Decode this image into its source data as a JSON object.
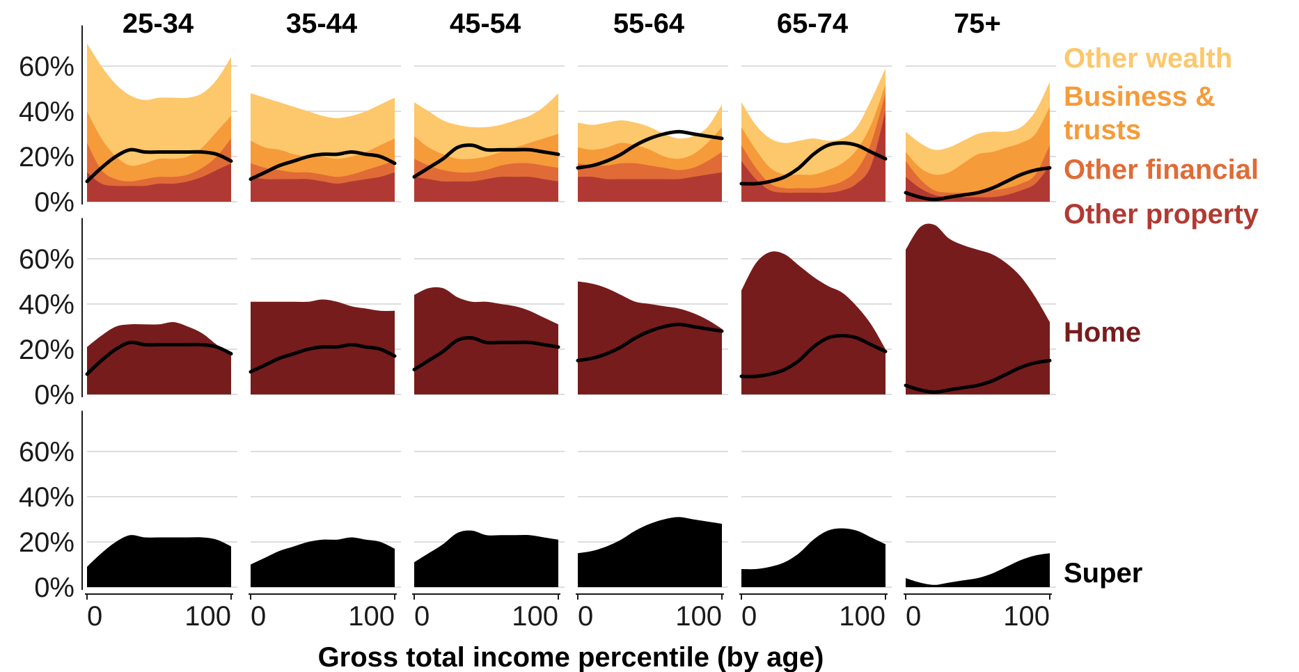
{
  "chart_data": {
    "type": "area",
    "xlabel": "Gross total income percentile (by age)",
    "x_ticks": [
      "0",
      "100"
    ],
    "x_range": [
      0,
      100
    ],
    "y_ticks": [
      "0%",
      "20%",
      "40%",
      "60%"
    ],
    "y_range": [
      0,
      0.78
    ],
    "x": [
      0,
      10,
      20,
      30,
      40,
      50,
      60,
      70,
      80,
      90,
      100
    ],
    "age_groups": [
      "25-34",
      "35-44",
      "45-54",
      "55-64",
      "65-74",
      "75+"
    ],
    "rows": [
      {
        "label_lines": [
          "Other wealth",
          "Business &",
          "trusts",
          "Other financial",
          "Other property"
        ],
        "series_names": [
          "Other property",
          "Other financial",
          "Business & trusts",
          "Other wealth"
        ],
        "colors": [
          "#b03a33",
          "#e06b36",
          "#f59b3a",
          "#fdc76b"
        ]
      },
      {
        "label_lines": [
          "Home"
        ],
        "colors": [
          "#771c1c"
        ]
      },
      {
        "label_lines": [
          "Super"
        ],
        "colors": [
          "#000000"
        ]
      }
    ],
    "super_share": {
      "25-34": [
        0.09,
        0.15,
        0.2,
        0.23,
        0.22,
        0.22,
        0.22,
        0.22,
        0.22,
        0.21,
        0.18
      ],
      "35-44": [
        0.1,
        0.13,
        0.16,
        0.18,
        0.2,
        0.21,
        0.21,
        0.22,
        0.21,
        0.2,
        0.17
      ],
      "45-54": [
        0.11,
        0.15,
        0.19,
        0.24,
        0.25,
        0.23,
        0.23,
        0.23,
        0.23,
        0.22,
        0.21
      ],
      "55-64": [
        0.15,
        0.16,
        0.18,
        0.21,
        0.25,
        0.28,
        0.3,
        0.31,
        0.3,
        0.29,
        0.28
      ],
      "65-74": [
        0.08,
        0.08,
        0.09,
        0.11,
        0.15,
        0.21,
        0.25,
        0.26,
        0.25,
        0.22,
        0.19
      ],
      "75+": [
        0.04,
        0.02,
        0.01,
        0.02,
        0.03,
        0.04,
        0.06,
        0.09,
        0.12,
        0.14,
        0.15
      ]
    },
    "home_top": {
      "25-34": [
        0.21,
        0.26,
        0.3,
        0.31,
        0.31,
        0.31,
        0.32,
        0.3,
        0.27,
        0.22,
        0.18
      ],
      "35-44": [
        0.41,
        0.41,
        0.41,
        0.41,
        0.41,
        0.42,
        0.41,
        0.39,
        0.38,
        0.37,
        0.37
      ],
      "45-54": [
        0.44,
        0.47,
        0.47,
        0.43,
        0.41,
        0.41,
        0.4,
        0.39,
        0.37,
        0.34,
        0.31
      ],
      "55-64": [
        0.5,
        0.49,
        0.47,
        0.44,
        0.41,
        0.4,
        0.39,
        0.38,
        0.36,
        0.33,
        0.29
      ],
      "65-74": [
        0.46,
        0.58,
        0.63,
        0.62,
        0.57,
        0.52,
        0.48,
        0.45,
        0.39,
        0.31,
        0.2
      ],
      "75+": [
        0.64,
        0.74,
        0.75,
        0.69,
        0.66,
        0.64,
        0.62,
        0.58,
        0.52,
        0.43,
        0.32
      ]
    },
    "wealth_stack_tops": {
      "25-34": [
        [
          0.13,
          0.08,
          0.07,
          0.07,
          0.07,
          0.08,
          0.08,
          0.09,
          0.11,
          0.14,
          0.17
        ],
        [
          0.26,
          0.14,
          0.1,
          0.09,
          0.1,
          0.11,
          0.11,
          0.12,
          0.15,
          0.2,
          0.28
        ],
        [
          0.4,
          0.28,
          0.2,
          0.16,
          0.17,
          0.19,
          0.19,
          0.2,
          0.24,
          0.31,
          0.38
        ],
        [
          0.7,
          0.6,
          0.52,
          0.47,
          0.45,
          0.46,
          0.46,
          0.46,
          0.48,
          0.54,
          0.64
        ]
      ],
      "35-44": [
        [
          0.11,
          0.1,
          0.1,
          0.1,
          0.1,
          0.09,
          0.08,
          0.09,
          0.1,
          0.11,
          0.13
        ],
        [
          0.17,
          0.15,
          0.14,
          0.13,
          0.13,
          0.12,
          0.11,
          0.12,
          0.14,
          0.16,
          0.18
        ],
        [
          0.27,
          0.24,
          0.23,
          0.21,
          0.2,
          0.2,
          0.19,
          0.2,
          0.22,
          0.25,
          0.28
        ],
        [
          0.48,
          0.46,
          0.44,
          0.42,
          0.4,
          0.38,
          0.37,
          0.38,
          0.4,
          0.43,
          0.46
        ]
      ],
      "45-54": [
        [
          0.11,
          0.1,
          0.09,
          0.09,
          0.09,
          0.1,
          0.11,
          0.11,
          0.11,
          0.1,
          0.09
        ],
        [
          0.19,
          0.16,
          0.14,
          0.13,
          0.13,
          0.14,
          0.16,
          0.17,
          0.17,
          0.16,
          0.15
        ],
        [
          0.29,
          0.24,
          0.21,
          0.19,
          0.19,
          0.2,
          0.22,
          0.24,
          0.26,
          0.28,
          0.3
        ],
        [
          0.44,
          0.4,
          0.36,
          0.34,
          0.33,
          0.33,
          0.34,
          0.36,
          0.38,
          0.42,
          0.48
        ]
      ],
      "55-64": [
        [
          0.11,
          0.11,
          0.1,
          0.1,
          0.1,
          0.1,
          0.1,
          0.1,
          0.11,
          0.12,
          0.13
        ],
        [
          0.17,
          0.16,
          0.16,
          0.17,
          0.17,
          0.16,
          0.15,
          0.14,
          0.15,
          0.18,
          0.22
        ],
        [
          0.24,
          0.23,
          0.24,
          0.26,
          0.25,
          0.23,
          0.2,
          0.19,
          0.21,
          0.26,
          0.33
        ],
        [
          0.35,
          0.34,
          0.35,
          0.36,
          0.35,
          0.33,
          0.3,
          0.28,
          0.29,
          0.33,
          0.43
        ]
      ],
      "65-74": [
        [
          0.18,
          0.1,
          0.05,
          0.04,
          0.04,
          0.04,
          0.04,
          0.05,
          0.08,
          0.16,
          0.4
        ],
        [
          0.25,
          0.15,
          0.08,
          0.06,
          0.06,
          0.06,
          0.07,
          0.09,
          0.14,
          0.26,
          0.48
        ],
        [
          0.33,
          0.23,
          0.15,
          0.12,
          0.12,
          0.12,
          0.14,
          0.17,
          0.23,
          0.34,
          0.52
        ],
        [
          0.44,
          0.34,
          0.28,
          0.26,
          0.27,
          0.28,
          0.27,
          0.28,
          0.33,
          0.45,
          0.59
        ]
      ],
      "75+": [
        [
          0.11,
          0.06,
          0.03,
          0.02,
          0.02,
          0.02,
          0.02,
          0.03,
          0.05,
          0.08,
          0.16
        ],
        [
          0.18,
          0.1,
          0.05,
          0.04,
          0.04,
          0.04,
          0.05,
          0.06,
          0.08,
          0.12,
          0.25
        ],
        [
          0.22,
          0.15,
          0.12,
          0.13,
          0.17,
          0.21,
          0.22,
          0.24,
          0.26,
          0.3,
          0.42
        ],
        [
          0.31,
          0.26,
          0.23,
          0.24,
          0.27,
          0.3,
          0.31,
          0.31,
          0.33,
          0.4,
          0.53
        ]
      ]
    }
  }
}
